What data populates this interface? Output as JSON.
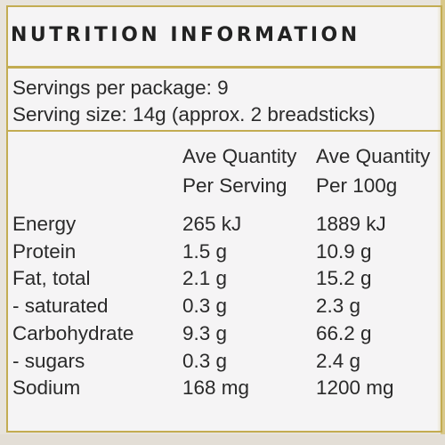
{
  "title": "NUTRITION INFORMATION",
  "servings_per_package": "Servings per package: 9",
  "serving_size": "Serving size: 14g (approx. 2 breadsticks)",
  "columns": {
    "per_serving_line1": "Ave Quantity",
    "per_serving_line2": "Per Serving",
    "per_100g_line1": "Ave Quantity",
    "per_100g_line2": "Per 100g"
  },
  "rows": [
    {
      "label": "Energy",
      "per_serving": "265 kJ",
      "per_100g": "1889 kJ"
    },
    {
      "label": "Protein",
      "per_serving": "1.5 g",
      "per_100g": "10.9 g"
    },
    {
      "label": "Fat, total",
      "per_serving": "2.1 g",
      "per_100g": "15.2 g"
    },
    {
      "label": "- saturated",
      "per_serving": "0.3 g",
      "per_100g": "2.3 g"
    },
    {
      "label": "Carbohydrate",
      "per_serving": "9.3 g",
      "per_100g": "66.2 g"
    },
    {
      "label": "- sugars",
      "per_serving": "0.3 g",
      "per_100g": "2.4 g"
    },
    {
      "label": "Sodium",
      "per_serving": "168 mg",
      "per_100g": "1200 mg"
    }
  ],
  "colors": {
    "accent_rule": "#c3ac52",
    "panel_background": "#f5f4f5",
    "text": "#2a2a2a"
  }
}
